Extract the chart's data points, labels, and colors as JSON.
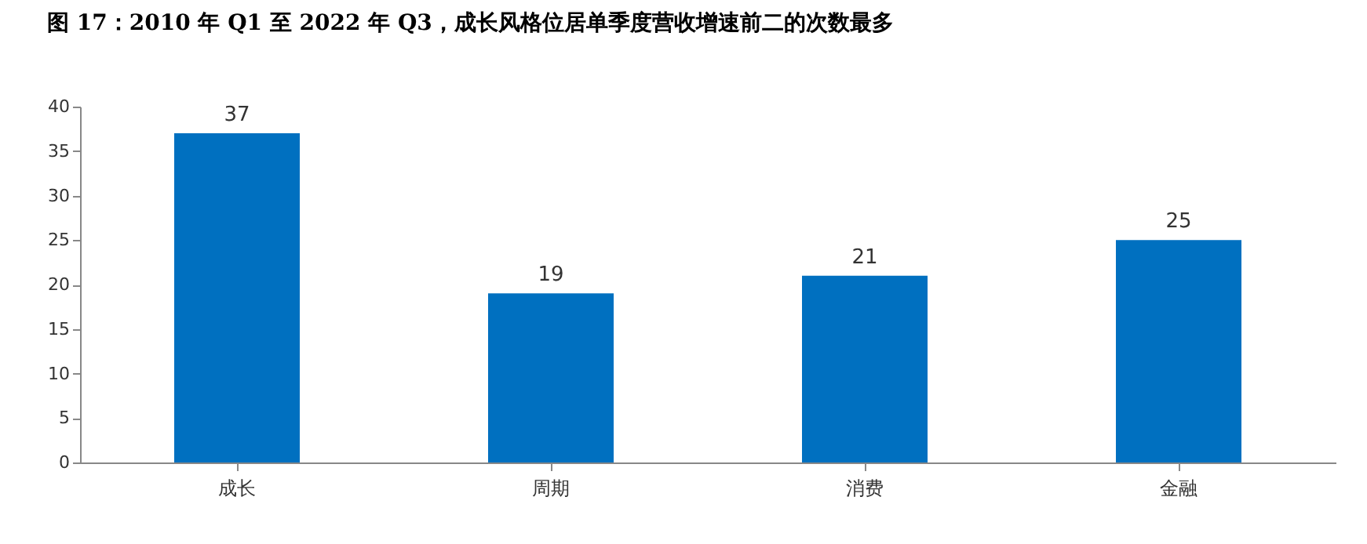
{
  "chart_data": {
    "type": "bar",
    "title": "图 17：2010 年 Q1 至 2022 年 Q3，成长风格位居单季度营收增速前二的次数最多",
    "categories": [
      "成长",
      "周期",
      "消费",
      "金融"
    ],
    "values": [
      37,
      19,
      21,
      25
    ],
    "color": "#0070c0",
    "ylim": [
      0,
      40
    ],
    "yticks": [
      0,
      5,
      10,
      15,
      20,
      25,
      30,
      35,
      40
    ],
    "grid": false,
    "data_labels": true
  }
}
